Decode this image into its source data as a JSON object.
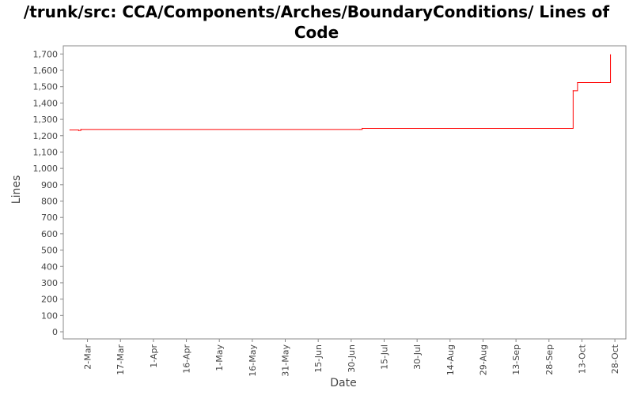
{
  "chart_data": {
    "type": "line",
    "title": "/trunk/src: CCA/Components/Arches/BoundaryConditions/ Lines of Code",
    "xlabel": "Date",
    "ylabel": "Lines",
    "ylim": [
      0,
      1750
    ],
    "yticks": [
      0,
      100,
      200,
      300,
      400,
      500,
      600,
      700,
      800,
      900,
      1000,
      1100,
      1200,
      1300,
      1400,
      1500,
      1600,
      1700
    ],
    "ytick_labels": [
      "0",
      "100",
      "200",
      "300",
      "400",
      "500",
      "600",
      "700",
      "800",
      "900",
      "1,000",
      "1,100",
      "1,200",
      "1,300",
      "1,400",
      "1,500",
      "1,600",
      "1,700"
    ],
    "xlim": [
      "2010-02-19",
      "2010-11-02"
    ],
    "xticks": [
      "2010-03-02",
      "2010-03-17",
      "2010-04-01",
      "2010-04-16",
      "2010-05-01",
      "2010-05-16",
      "2010-05-31",
      "2010-06-15",
      "2010-06-30",
      "2010-07-15",
      "2010-07-30",
      "2010-08-14",
      "2010-08-29",
      "2010-09-13",
      "2010-09-28",
      "2010-10-13",
      "2010-10-28"
    ],
    "xtick_labels": [
      "2-Mar",
      "17-Mar",
      "1-Apr",
      "16-Apr",
      "1-May",
      "16-May",
      "31-May",
      "15-Jun",
      "30-Jun",
      "15-Jul",
      "30-Jul",
      "14-Aug",
      "29-Aug",
      "13-Sep",
      "28-Sep",
      "13-Oct",
      "28-Oct"
    ],
    "grid": false,
    "step": true,
    "series": [
      {
        "color": "#ff0000",
        "x": [
          "2010-02-22",
          "2010-02-26",
          "2010-02-27",
          "2010-07-04",
          "2010-07-05",
          "2010-10-09",
          "2010-10-11",
          "2010-10-26"
        ],
        "y": [
          1235,
          1232,
          1238,
          1238,
          1245,
          1475,
          1525,
          1695
        ]
      }
    ]
  }
}
